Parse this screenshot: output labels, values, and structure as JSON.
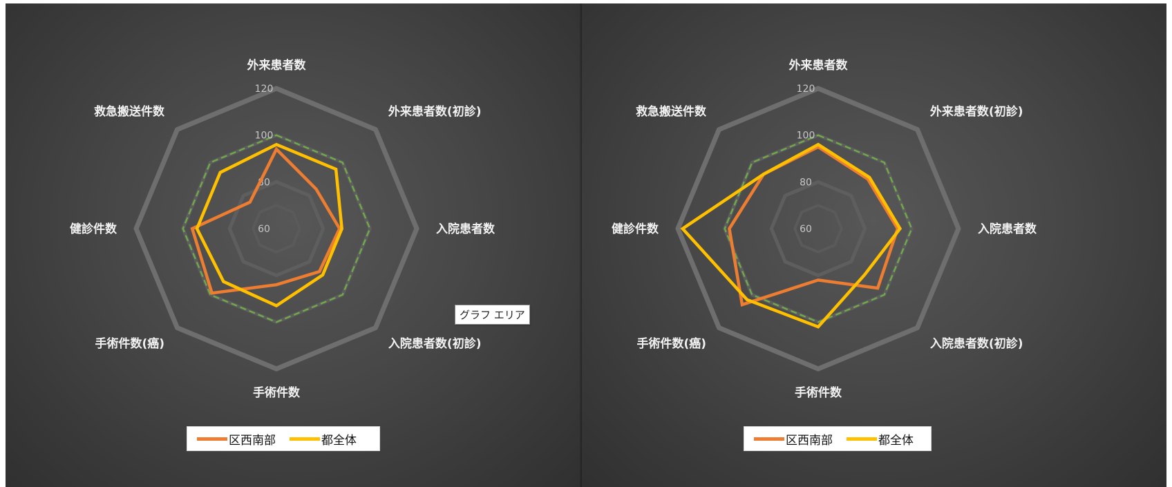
{
  "chart_data": [
    {
      "type": "radar",
      "axes": [
        "外来患者数",
        "外来患者数(初診)",
        "入院患者数",
        "入院患者数(初診)",
        "手術件数",
        "手術件数(癌)",
        "健診件数",
        "救急搬送件数"
      ],
      "ticks": [
        "60",
        "80",
        "100",
        "120"
      ],
      "rlim": [
        60,
        120
      ],
      "reference_line": {
        "value": 100,
        "color": "#70ad47",
        "style": "dashed"
      },
      "series": [
        {
          "name": "区西南部",
          "color": "#ed7d31",
          "values": [
            94,
            84,
            87,
            86,
            84,
            99,
            96,
            76
          ]
        },
        {
          "name": "都全体",
          "color": "#ffc000",
          "values": [
            96,
            96,
            88,
            88,
            93,
            92,
            94,
            94
          ]
        }
      ],
      "legend": "bottom"
    },
    {
      "type": "radar",
      "axes": [
        "外来患者数",
        "外来患者数(初診)",
        "入院患者数",
        "入院患者数(初診)",
        "手術件数",
        "手術件数(癌)",
        "健診件数",
        "救急搬送件数"
      ],
      "ticks": [
        "60",
        "80",
        "100",
        "120"
      ],
      "rlim": [
        60,
        120
      ],
      "reference_line": {
        "value": 100,
        "color": "#70ad47",
        "style": "dashed"
      },
      "series": [
        {
          "name": "区西南部",
          "color": "#ed7d31",
          "values": [
            95,
            90,
            94,
            96,
            82,
            106,
            98,
            93
          ]
        },
        {
          "name": "都全体",
          "color": "#ffc000",
          "values": [
            96,
            91,
            95,
            88,
            102,
            103,
            118,
            93
          ]
        }
      ],
      "legend": "bottom"
    }
  ],
  "tooltip": {
    "text": "グラフ エリア"
  }
}
